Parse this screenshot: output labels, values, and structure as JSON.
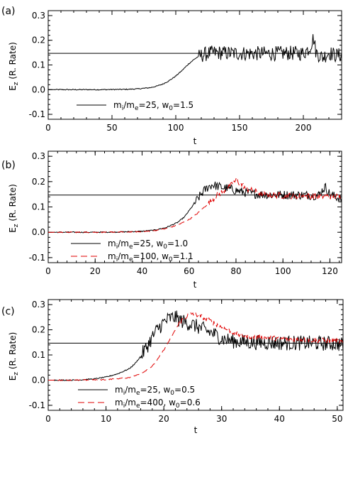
{
  "figure": {
    "panels": [
      "(a)",
      "(b)",
      "(c)"
    ],
    "xlabel": "t",
    "ylabel_main": "E",
    "ylabel_sub": "z",
    "ylabel_rest": "  (R. Rate)",
    "legends": [
      [
        {
          "color": "#000000",
          "dash": "solid",
          "text": "m_i/m_e=25, w_0=1.5"
        }
      ],
      [
        {
          "color": "#000000",
          "dash": "solid",
          "text": "m_i/m_e=25, w_0=1.0"
        },
        {
          "color": "#e00000",
          "dash": "dashed",
          "text": "m_i/m_e=100, w_0=1.1"
        }
      ],
      [
        {
          "color": "#000000",
          "dash": "solid",
          "text": "m_i/m_e=25, w_0=0.5"
        },
        {
          "color": "#e00000",
          "dash": "dashed",
          "text": "m_i/m_e=400, w_0=0.6"
        }
      ]
    ]
  },
  "chart_data": [
    {
      "type": "line",
      "panel": "(a)",
      "xlabel": "t",
      "ylabel": "E_z (R. Rate)",
      "xlim": [
        0,
        230
      ],
      "ylim": [
        -0.12,
        0.32
      ],
      "xticks": [
        0,
        50,
        100,
        150,
        200
      ],
      "yticks": [
        -0.1,
        0.0,
        0.1,
        0.2,
        0.3
      ],
      "reference_line": 0.147,
      "series": [
        {
          "name": "m_i/m_e=25, w_0=1.5",
          "color": "#000000",
          "dash": "solid",
          "x": [
            0,
            20,
            40,
            60,
            70,
            80,
            85,
            90,
            95,
            100,
            105,
            110,
            115,
            118,
            122,
            126,
            130,
            140,
            150,
            160,
            170,
            180,
            190,
            200,
            205,
            208,
            210,
            215,
            220,
            225,
            230
          ],
          "y": [
            0.0,
            0.0,
            0.0,
            0.001,
            0.003,
            0.008,
            0.014,
            0.023,
            0.037,
            0.055,
            0.078,
            0.104,
            0.125,
            0.135,
            0.142,
            0.147,
            0.15,
            0.148,
            0.147,
            0.147,
            0.146,
            0.147,
            0.148,
            0.147,
            0.17,
            0.21,
            0.15,
            0.13,
            0.15,
            0.14,
            0.14
          ],
          "noise_after_x": 118,
          "noise_amplitude": 0.03
        }
      ]
    },
    {
      "type": "line",
      "panel": "(b)",
      "xlabel": "t",
      "ylabel": "E_z (R. Rate)",
      "xlim": [
        0,
        125
      ],
      "ylim": [
        -0.12,
        0.32
      ],
      "xticks": [
        0,
        20,
        40,
        60,
        80,
        100,
        120
      ],
      "yticks": [
        -0.1,
        0.0,
        0.1,
        0.2,
        0.3
      ],
      "reference_line": 0.147,
      "series": [
        {
          "name": "m_i/m_e=25, w_0=1.0",
          "color": "#000000",
          "dash": "solid",
          "x": [
            0,
            20,
            30,
            40,
            45,
            50,
            55,
            58,
            60,
            62,
            64,
            66,
            68,
            70,
            72,
            75,
            78,
            80,
            85,
            90,
            95,
            100,
            105,
            110,
            115,
            118,
            120,
            125
          ],
          "y": [
            0.0,
            0.0,
            0.001,
            0.004,
            0.008,
            0.018,
            0.038,
            0.06,
            0.085,
            0.11,
            0.135,
            0.16,
            0.178,
            0.188,
            0.182,
            0.175,
            0.17,
            0.165,
            0.155,
            0.15,
            0.148,
            0.148,
            0.147,
            0.147,
            0.145,
            0.18,
            0.15,
            0.13
          ],
          "noise_after_x": 62,
          "noise_amplitude": 0.018
        },
        {
          "name": "m_i/m_e=100, w_0=1.1",
          "color": "#e00000",
          "dash": "dashed",
          "x": [
            0,
            20,
            40,
            45,
            50,
            55,
            60,
            63,
            66,
            69,
            72,
            75,
            78,
            80,
            82,
            85,
            90,
            95,
            100,
            110,
            120,
            125
          ],
          "y": [
            0.0,
            0.0,
            0.002,
            0.006,
            0.014,
            0.028,
            0.05,
            0.07,
            0.095,
            0.12,
            0.145,
            0.165,
            0.185,
            0.205,
            0.19,
            0.17,
            0.155,
            0.148,
            0.145,
            0.143,
            0.142,
            0.14
          ],
          "noise_after_x": 68,
          "noise_amplitude": 0.012
        }
      ]
    },
    {
      "type": "line",
      "panel": "(c)",
      "xlabel": "t",
      "ylabel": "E_z (R. Rate)",
      "xlim": [
        0,
        51
      ],
      "ylim": [
        -0.12,
        0.32
      ],
      "xticks": [
        0,
        10,
        20,
        30,
        40,
        50
      ],
      "yticks": [
        -0.1,
        0.0,
        0.1,
        0.2,
        0.3
      ],
      "reference_line": 0.147,
      "series": [
        {
          "name": "m_i/m_e=25, w_0=0.5",
          "color": "#000000",
          "dash": "solid",
          "x": [
            0,
            5,
            8,
            10,
            12,
            14,
            15,
            16,
            17,
            18,
            19,
            20,
            21,
            22,
            23,
            25,
            27,
            29,
            30,
            32,
            35,
            40,
            45,
            50,
            51
          ],
          "y": [
            0.0,
            0.0,
            0.005,
            0.012,
            0.025,
            0.045,
            0.065,
            0.095,
            0.13,
            0.17,
            0.205,
            0.23,
            0.245,
            0.25,
            0.235,
            0.22,
            0.2,
            0.18,
            0.165,
            0.155,
            0.15,
            0.148,
            0.147,
            0.145,
            0.14
          ],
          "noise_after_x": 16,
          "noise_amplitude": 0.03
        },
        {
          "name": "m_i/m_e=400, w_0=0.6",
          "color": "#e00000",
          "dash": "dashed",
          "x": [
            0,
            5,
            10,
            14,
            16,
            18,
            19,
            20,
            21,
            22,
            23,
            24,
            25,
            26,
            28,
            30,
            33,
            36,
            40,
            45,
            50,
            51
          ],
          "y": [
            0.0,
            0.0,
            0.002,
            0.01,
            0.025,
            0.055,
            0.085,
            0.12,
            0.16,
            0.2,
            0.235,
            0.255,
            0.265,
            0.258,
            0.235,
            0.21,
            0.18,
            0.17,
            0.165,
            0.16,
            0.155,
            0.15
          ],
          "noise_after_x": 22,
          "noise_amplitude": 0.01
        }
      ]
    }
  ]
}
